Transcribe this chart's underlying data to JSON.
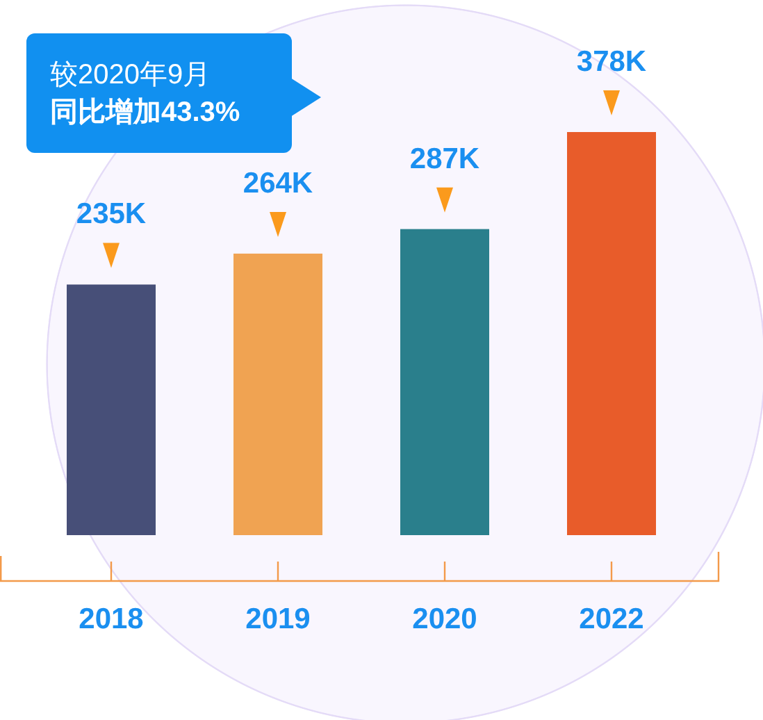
{
  "chart_data": {
    "type": "bar",
    "categories": [
      "2018",
      "2019",
      "2020",
      "2022"
    ],
    "values": [
      235,
      264,
      287,
      378
    ],
    "value_labels": [
      "235K",
      "264K",
      "287K",
      "378K"
    ],
    "colors": [
      "#474f78",
      "#f0a352",
      "#2a7f8c",
      "#e85c2a"
    ],
    "annotations": [
      "较2020年9月",
      "同比增加43.3%"
    ]
  }
}
